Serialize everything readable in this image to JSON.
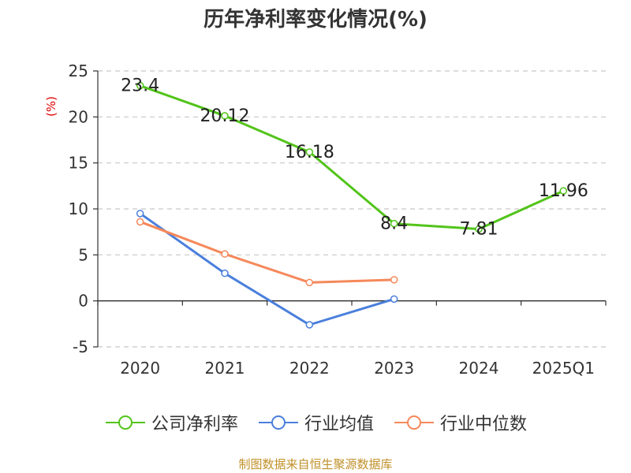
{
  "chart_data": {
    "type": "line",
    "title": "历年净利率变化情况(%)",
    "xlabel": "",
    "ylabel": "(%)",
    "categories": [
      "2020",
      "2021",
      "2022",
      "2023",
      "2024",
      "2025Q1"
    ],
    "ylim": [
      -5,
      25
    ],
    "yticks": [
      -5,
      0,
      5,
      10,
      15,
      20,
      25
    ],
    "grid": true,
    "legend_position": "bottom",
    "series": [
      {
        "name": "公司净利率",
        "color": "#52c41a",
        "values": [
          23.4,
          20.12,
          16.18,
          8.4,
          7.81,
          11.96
        ],
        "labels": [
          "23.4",
          "20.12",
          "16.18",
          "8.4",
          "7.81",
          "11.96"
        ]
      },
      {
        "name": "行业均值",
        "color": "#4a7fdc",
        "values": [
          9.5,
          3.0,
          -2.6,
          0.2,
          null,
          null
        ]
      },
      {
        "name": "行业中位数",
        "color": "#f5885a",
        "values": [
          8.6,
          5.1,
          2.0,
          2.3,
          null,
          null
        ]
      }
    ]
  },
  "source_text": "制图数据来自恒生聚源数据库"
}
